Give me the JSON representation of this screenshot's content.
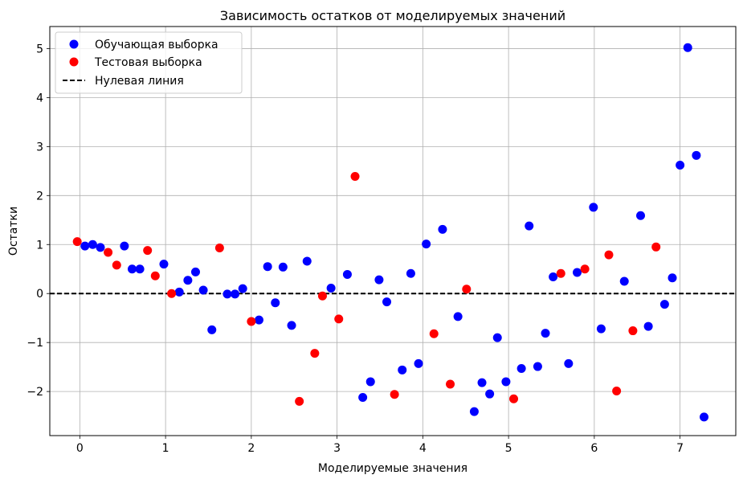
{
  "chart_data": {
    "type": "scatter",
    "title": "Зависимость остатков от моделируемых значений",
    "xlabel": "Моделируемые значения",
    "ylabel": "Остатки",
    "xlim": [
      -0.35,
      7.65
    ],
    "ylim": [
      -2.9,
      5.45
    ],
    "xticks": [
      0,
      1,
      2,
      3,
      4,
      5,
      6,
      7
    ],
    "yticks": [
      -2,
      -1,
      0,
      1,
      2,
      3,
      4,
      5
    ],
    "grid": true,
    "legend_position": "top-left",
    "series": [
      {
        "name": "Обучающая выборка",
        "color": "#0000ff",
        "points": [
          [
            0.06,
            0.97
          ],
          [
            0.15,
            1.0
          ],
          [
            0.24,
            0.94
          ],
          [
            0.52,
            0.97
          ],
          [
            0.61,
            0.5
          ],
          [
            0.7,
            0.5
          ],
          [
            0.98,
            0.6
          ],
          [
            1.16,
            0.03
          ],
          [
            1.26,
            0.27
          ],
          [
            1.35,
            0.44
          ],
          [
            1.44,
            0.07
          ],
          [
            1.54,
            -0.74
          ],
          [
            1.72,
            -0.01
          ],
          [
            1.81,
            -0.01
          ],
          [
            1.9,
            0.1
          ],
          [
            2.09,
            -0.54
          ],
          [
            2.19,
            0.55
          ],
          [
            2.28,
            -0.19
          ],
          [
            2.37,
            0.54
          ],
          [
            2.47,
            -0.65
          ],
          [
            2.65,
            0.66
          ],
          [
            2.93,
            0.11
          ],
          [
            3.12,
            0.39
          ],
          [
            3.3,
            -2.12
          ],
          [
            3.39,
            -1.8
          ],
          [
            3.49,
            0.28
          ],
          [
            3.58,
            -0.17
          ],
          [
            3.76,
            -1.56
          ],
          [
            3.86,
            0.41
          ],
          [
            3.95,
            -1.43
          ],
          [
            4.04,
            1.01
          ],
          [
            4.23,
            1.31
          ],
          [
            4.41,
            -0.47
          ],
          [
            4.6,
            -2.41
          ],
          [
            4.69,
            -1.82
          ],
          [
            4.78,
            -2.05
          ],
          [
            4.87,
            -0.9
          ],
          [
            4.97,
            -1.8
          ],
          [
            5.15,
            -1.53
          ],
          [
            5.24,
            1.38
          ],
          [
            5.34,
            -1.49
          ],
          [
            5.43,
            -0.81
          ],
          [
            5.52,
            0.34
          ],
          [
            5.7,
            -1.43
          ],
          [
            5.8,
            0.43
          ],
          [
            5.99,
            1.76
          ],
          [
            6.08,
            -0.72
          ],
          [
            6.35,
            0.25
          ],
          [
            6.54,
            1.59
          ],
          [
            6.63,
            -0.67
          ],
          [
            6.82,
            -0.22
          ],
          [
            6.91,
            0.32
          ],
          [
            7.0,
            2.62
          ],
          [
            7.09,
            5.02
          ],
          [
            7.19,
            2.82
          ],
          [
            7.28,
            -2.52
          ]
        ]
      },
      {
        "name": "Тестовая выборка",
        "color": "#ff0000",
        "points": [
          [
            -0.03,
            1.06
          ],
          [
            0.33,
            0.84
          ],
          [
            0.43,
            0.58
          ],
          [
            0.79,
            0.88
          ],
          [
            0.88,
            0.36
          ],
          [
            1.07,
            0.0
          ],
          [
            1.63,
            0.93
          ],
          [
            2.0,
            -0.57
          ],
          [
            2.56,
            -2.2
          ],
          [
            2.74,
            -1.22
          ],
          [
            2.83,
            -0.05
          ],
          [
            3.02,
            -0.52
          ],
          [
            3.21,
            2.39
          ],
          [
            3.67,
            -2.06
          ],
          [
            4.13,
            -0.82
          ],
          [
            4.32,
            -1.85
          ],
          [
            4.51,
            0.09
          ],
          [
            5.06,
            -2.15
          ],
          [
            5.61,
            0.41
          ],
          [
            5.89,
            0.5
          ],
          [
            6.17,
            0.79
          ],
          [
            6.26,
            -1.99
          ],
          [
            6.45,
            -0.76
          ],
          [
            6.72,
            0.95
          ]
        ]
      }
    ],
    "reference_line": {
      "name": "Нулевая линия",
      "y": 0,
      "color": "#000000",
      "style": "dashed"
    }
  }
}
